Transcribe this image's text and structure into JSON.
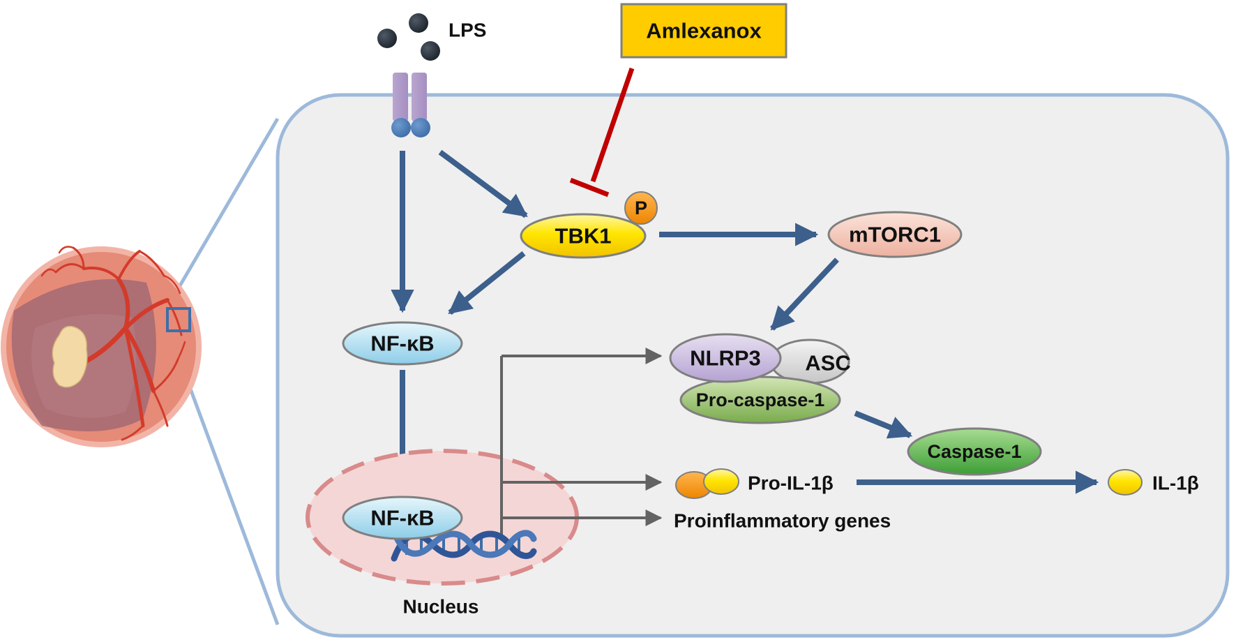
{
  "inhibitor": {
    "label": "Amlexanox",
    "fill": "#FFCC00"
  },
  "ligand": {
    "label": "LPS"
  },
  "nodes": {
    "tbk1": {
      "label": "TBK1",
      "phospho": "P"
    },
    "mtorc1": {
      "label": "mTORC1"
    },
    "nfkb_cytoplasm": {
      "label": "NF-κB"
    },
    "nfkb_nucleus": {
      "label": "NF-κB"
    },
    "nlrp3": {
      "label": "NLRP3"
    },
    "asc": {
      "label": "ASC"
    },
    "pro_caspase1": {
      "label": "Pro-caspase-1"
    },
    "caspase1": {
      "label": "Caspase-1"
    }
  },
  "products": {
    "pro_il1b": "Pro-IL-1β",
    "il1b": "IL-1β",
    "genes": "Proinflammatory genes"
  },
  "compartments": {
    "nucleus": "Nucleus"
  },
  "colors": {
    "pathway_arrow": "#3C5F8C",
    "transcription_arrow": "#636363",
    "inhibition": "#C00000",
    "cell_border": "#9DB9DA",
    "cell_fill": "#EFEFEF"
  }
}
